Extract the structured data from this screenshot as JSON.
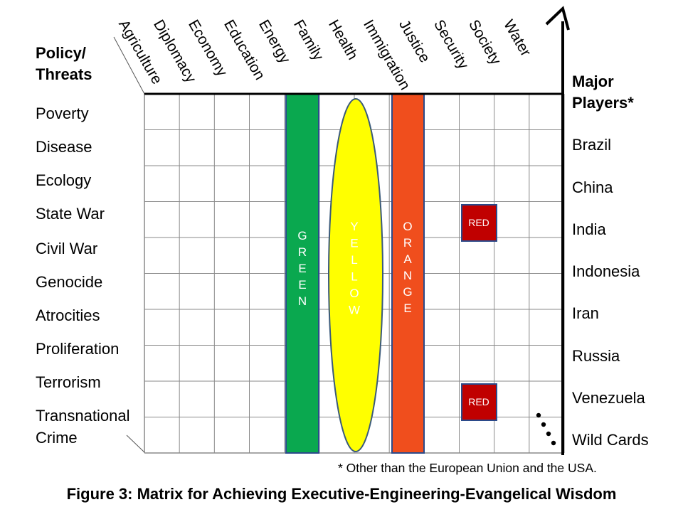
{
  "corner": {
    "line1": "Policy/",
    "line2": "Threats"
  },
  "columns": [
    "Agriculture",
    "Diplomacy",
    "Economy",
    "Education",
    "Energy",
    "Family",
    "Health",
    "Immigration",
    "Justice",
    "Security",
    "Society",
    "Water"
  ],
  "rows": [
    "Poverty",
    "Disease",
    "Ecology",
    "State War",
    "Civil War",
    "Genocide",
    "Atrocities",
    "Proliferation",
    "Terrorism",
    "Transnational",
    "Crime"
  ],
  "players_title": {
    "line1": "Major",
    "line2": "Players*"
  },
  "players": [
    "Brazil",
    "China",
    "India",
    "Indonesia",
    "Iran",
    "Russia",
    "Venezuela",
    "Wild Cards"
  ],
  "bands": {
    "green": {
      "text": "GREEN",
      "color": "#0aa84f"
    },
    "yellow": {
      "text": "YELLOW",
      "color": "#ffff00"
    },
    "orange": {
      "text": "ORANGE",
      "color": "#f04e1d"
    }
  },
  "red_marker": {
    "text": "RED",
    "color": "#c00000"
  },
  "footnote": "* Other than the European Union and the USA.",
  "caption": "Figure 3: Matrix for Achieving Executive-Engineering-Evangelical  Wisdom"
}
